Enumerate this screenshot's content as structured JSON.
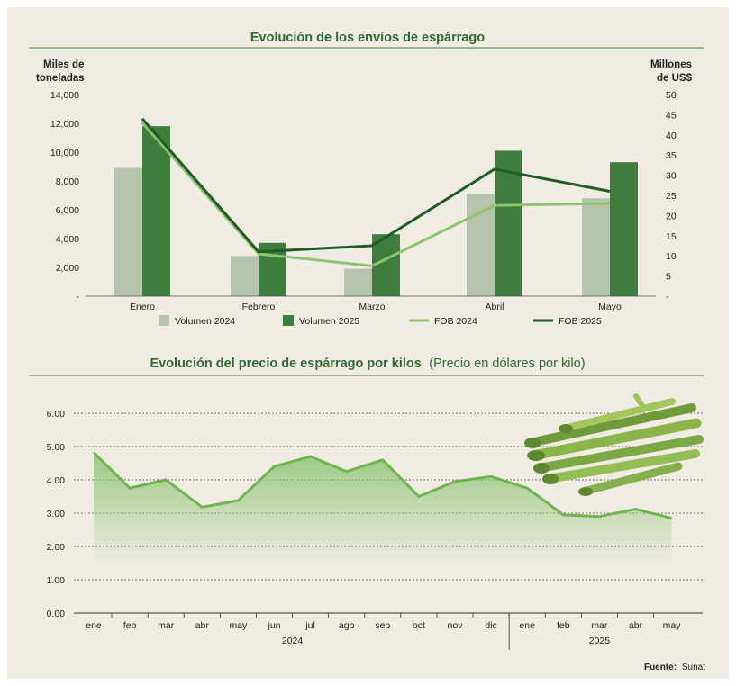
{
  "colors": {
    "vol2024": "#b6c3ab",
    "vol2025": "#3f7d3c",
    "fob2024": "#8cc470",
    "fob2025": "#1e5e22",
    "price_line": "#6db64f",
    "title": "#2f6b2c",
    "rule": "#3f7d3c",
    "background": "#f0ebe3"
  },
  "chart_data": [
    {
      "type": "bar",
      "title": "Evolución de los envíos de espárrago",
      "left_unit_line1": "Miles de",
      "left_unit_line2": "toneladas",
      "right_unit_line1": "Millones",
      "right_unit_line2": "de US$",
      "categories": [
        "Enero",
        "Febrero",
        "Marzo",
        "Abril",
        "Mayo"
      ],
      "ylim": [
        0,
        14000
      ],
      "y_ticks": [
        "14,000",
        "12,000",
        "10,000",
        "8,000",
        "6,000",
        "4,000",
        "2,000",
        "-"
      ],
      "y2lim": [
        0,
        50
      ],
      "y2_ticks": [
        "50",
        "45",
        "40",
        "35",
        "30",
        "25",
        "20",
        "15",
        "10",
        "5",
        "-"
      ],
      "series": [
        {
          "name": "Volumen 2024",
          "kind": "bar",
          "values": [
            8900,
            2800,
            1900,
            7100,
            6800
          ]
        },
        {
          "name": "Volumen 2025",
          "kind": "bar",
          "values": [
            11800,
            3700,
            4300,
            10100,
            9300
          ]
        },
        {
          "name": "FOB 2024",
          "kind": "line",
          "axis": "right",
          "values": [
            43,
            10.5,
            7.5,
            22.5,
            23
          ]
        },
        {
          "name": "FOB 2025",
          "kind": "line",
          "axis": "right",
          "values": [
            44,
            11,
            12.5,
            31.5,
            26
          ]
        }
      ]
    },
    {
      "type": "area",
      "title_bold": "Evolución del precio de espárrago por kilos",
      "title_light": "(Precio en dólares por kilo)",
      "x": [
        "ene",
        "feb",
        "mar",
        "abr",
        "may",
        "jun",
        "jul",
        "ago",
        "sep",
        "oct",
        "nov",
        "dic",
        "ene",
        "feb",
        "mar",
        "abr",
        "may"
      ],
      "year_groups": [
        "2024",
        "2025"
      ],
      "ylim": [
        0,
        6
      ],
      "y_ticks": [
        "6.00",
        "5.00",
        "4.00",
        "3.00",
        "2.00",
        "1.00",
        "0.00"
      ],
      "grid": true,
      "values": [
        4.82,
        3.75,
        4.0,
        3.18,
        3.38,
        4.4,
        4.7,
        4.25,
        4.6,
        3.5,
        3.95,
        4.1,
        3.75,
        2.95,
        2.9,
        3.12,
        2.85
      ]
    }
  ],
  "source_label": "Fuente:",
  "source_value": "Sunat"
}
